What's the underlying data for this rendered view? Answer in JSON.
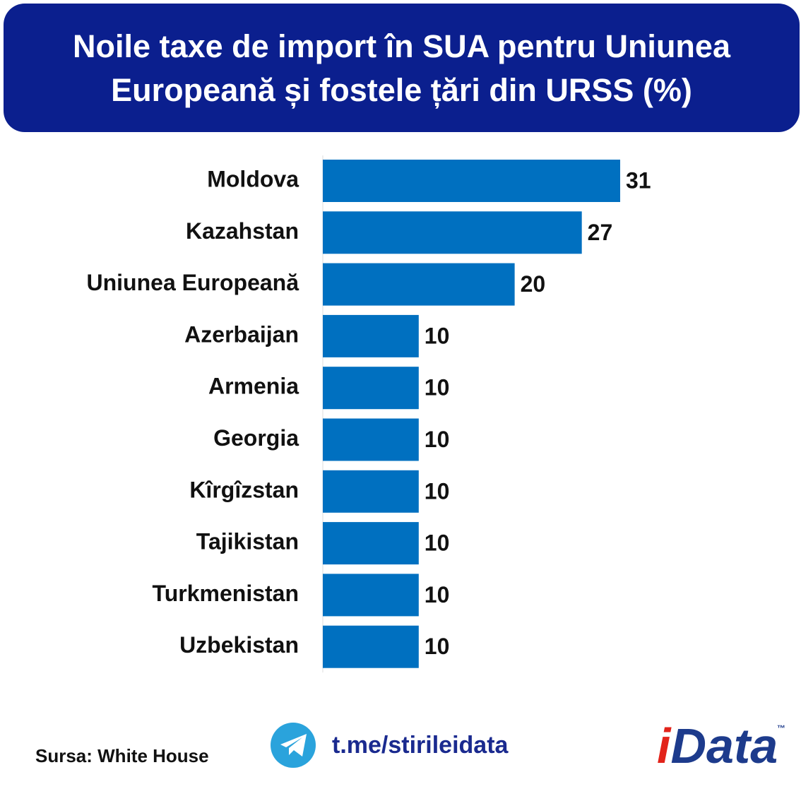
{
  "chart_data": {
    "type": "hbar",
    "title": "Noile taxe de import în SUA pentru Uniunea Europeană și fostele țări din URSS (%)",
    "categories": [
      "Moldova",
      "Kazahstan",
      "Uniunea Europeană",
      "Azerbaijan",
      "Armenia",
      "Georgia",
      "Kîrgîzstan",
      "Tajikistan",
      "Turkmenistan",
      "Uzbekistan"
    ],
    "values": [
      31,
      27,
      20,
      10,
      10,
      10,
      10,
      10,
      10,
      10
    ],
    "color": "#0070c0"
  },
  "footer": {
    "source": "Sursa: White House",
    "link": "t.me/stirileidata",
    "logo": {
      "mark": "i",
      "name": "Data",
      "tm": "™"
    }
  }
}
